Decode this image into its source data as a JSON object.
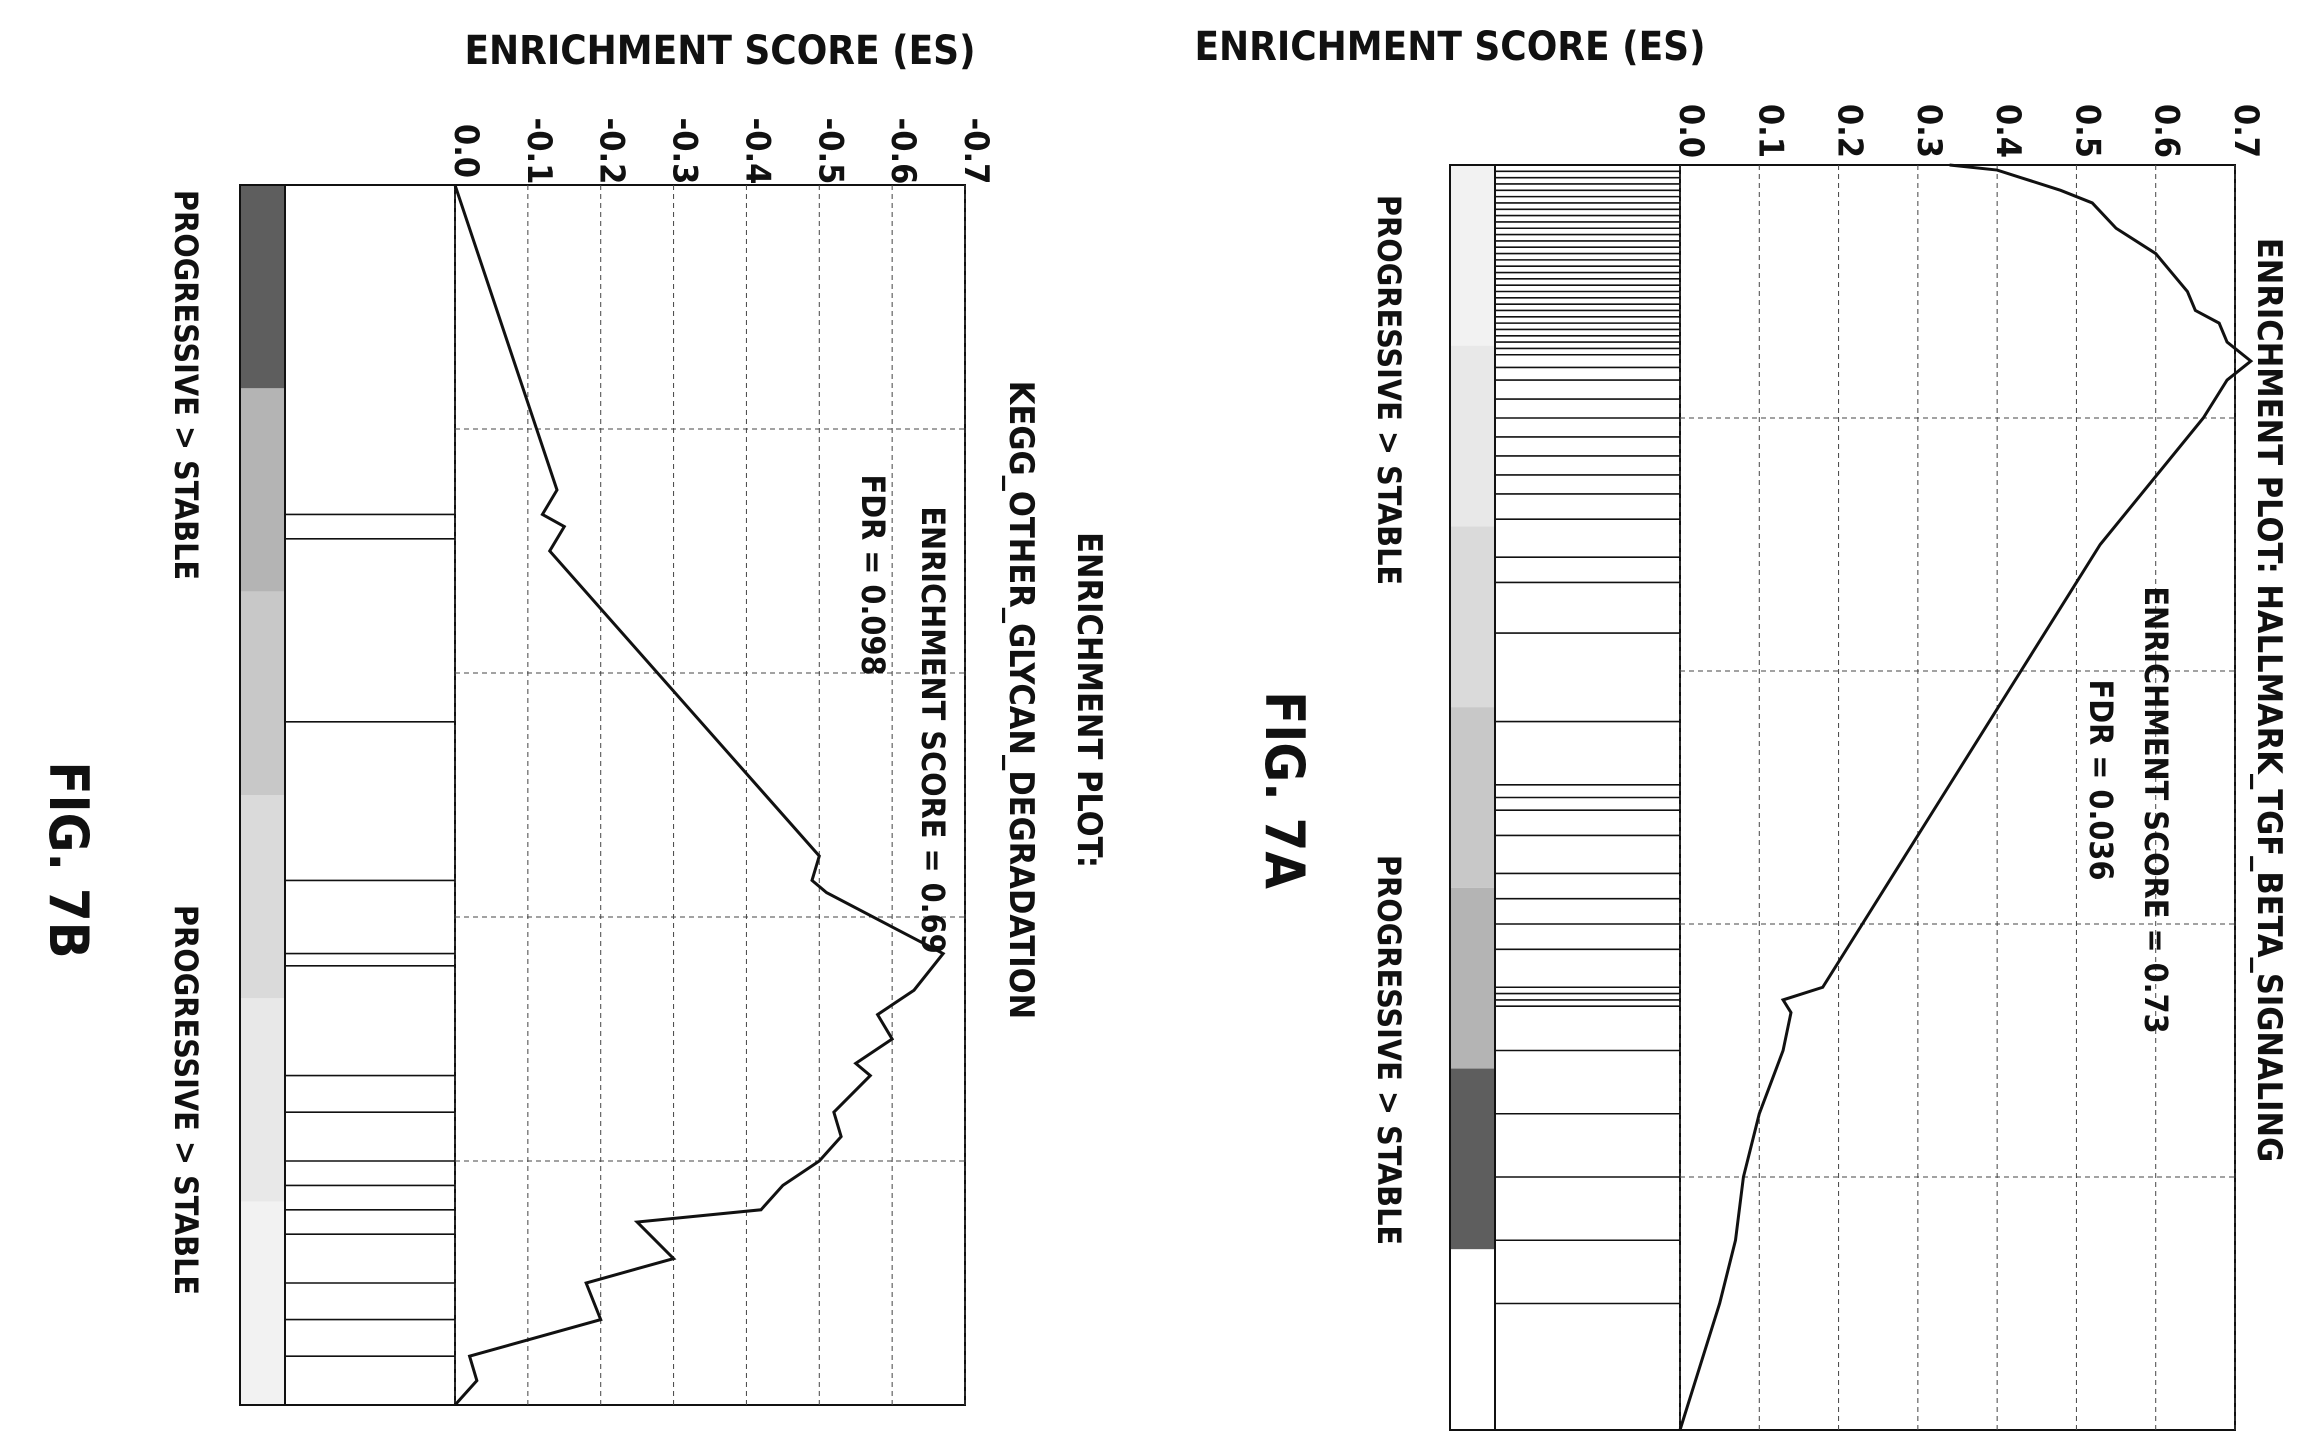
{
  "chart_data": [
    {
      "id": "fig7a",
      "type": "line",
      "figure_label": "FIG. 7A",
      "title": "ENRICHMENT PLOT: HALLMARK_TGF_BETA_SIGNALING",
      "annotations": [
        "ENRICHMENT SCORE = 0.73",
        "FDR = 0.036"
      ],
      "ylabel": "ENRICHMENT SCORE (ES)",
      "ylim": [
        0,
        0.7
      ],
      "yticks": [
        "0.0",
        "0.1",
        "0.2",
        "0.3",
        "0.4",
        "0.5",
        "0.6",
        "0.7"
      ],
      "ytick_values": [
        0,
        0.1,
        0.2,
        0.3,
        0.4,
        0.5,
        0.6,
        0.7
      ],
      "xlim": [
        0,
        1
      ],
      "x_axis_start_label": "PROGRESSIVE > STABLE",
      "x_axis_end_label": "PROGRESSIVE > STABLE",
      "grid": true,
      "series": [
        {
          "x": [
            0,
            0.004,
            0.01,
            0.02,
            0.03,
            0.05,
            0.07,
            0.085,
            0.1,
            0.115,
            0.125,
            0.14,
            0.155,
            0.17,
            0.2,
            0.3,
            0.4,
            0.5,
            0.6,
            0.65,
            0.66,
            0.67,
            0.7,
            0.75,
            0.8,
            0.85,
            0.9,
            0.94,
            0.98,
            1.0
          ],
          "y": [
            0.34,
            0.4,
            0.43,
            0.48,
            0.52,
            0.55,
            0.6,
            0.62,
            0.64,
            0.65,
            0.68,
            0.69,
            0.72,
            0.69,
            0.66,
            0.53,
            0.43,
            0.33,
            0.23,
            0.18,
            0.13,
            0.14,
            0.13,
            0.1,
            0.08,
            0.07,
            0.05,
            0.03,
            0.01,
            0.0
          ]
        }
      ],
      "hits": [
        0.0,
        0.005,
        0.01,
        0.015,
        0.02,
        0.025,
        0.03,
        0.035,
        0.04,
        0.045,
        0.05,
        0.055,
        0.06,
        0.065,
        0.07,
        0.075,
        0.08,
        0.085,
        0.09,
        0.095,
        0.1,
        0.105,
        0.11,
        0.115,
        0.12,
        0.125,
        0.13,
        0.135,
        0.14,
        0.145,
        0.15,
        0.16,
        0.17,
        0.185,
        0.2,
        0.215,
        0.23,
        0.245,
        0.26,
        0.28,
        0.31,
        0.33,
        0.37,
        0.44,
        0.49,
        0.5,
        0.51,
        0.53,
        0.56,
        0.58,
        0.6,
        0.62,
        0.65,
        0.655,
        0.66,
        0.665,
        0.7,
        0.75,
        0.8,
        0.85,
        0.9
      ],
      "ranking_bar_colors": [
        "#f2f2f2",
        "#e8e8e8",
        "#dadada",
        "#c8c8c8",
        "#b4b4b4",
        "#5e5e5e",
        "#ffffff"
      ]
    },
    {
      "id": "fig7b",
      "type": "line",
      "figure_label": "FIG. 7B",
      "title": [
        "ENRICHMENT PLOT:",
        "KEGG_OTHER_GLYCAN_DEGRADATION"
      ],
      "annotations": [
        "ENRICHMENT SCORE = 0.69",
        "FDR = 0.098"
      ],
      "ylabel": "ENRICHMENT SCORE (ES)",
      "ylim": [
        -0.7,
        0
      ],
      "yticks": [
        "0.0",
        "-0.1",
        "-0.2",
        "-0.3",
        "-0.4",
        "-0.5",
        "-0.6",
        "-0.7"
      ],
      "ytick_values": [
        0,
        -0.1,
        -0.2,
        -0.3,
        -0.4,
        -0.5,
        -0.6,
        -0.7
      ],
      "xlim": [
        0,
        1
      ],
      "x_axis_start_label": "PROGRESSIVE > STABLE",
      "x_axis_end_label": "PROGRESSIVE > STABLE",
      "grid": true,
      "series": [
        {
          "x": [
            0,
            0.25,
            0.27,
            0.28,
            0.3,
            0.55,
            0.57,
            0.58,
            0.63,
            0.66,
            0.68,
            0.7,
            0.72,
            0.73,
            0.76,
            0.78,
            0.8,
            0.82,
            0.84,
            0.85,
            0.88,
            0.9,
            0.93,
            0.96,
            0.98,
            1.0
          ],
          "y": [
            0,
            -0.14,
            -0.12,
            -0.15,
            -0.13,
            -0.5,
            -0.49,
            -0.51,
            -0.67,
            -0.63,
            -0.58,
            -0.6,
            -0.55,
            -0.57,
            -0.52,
            -0.53,
            -0.5,
            -0.45,
            -0.42,
            -0.25,
            -0.3,
            -0.18,
            -0.2,
            -0.02,
            -0.03,
            0
          ]
        }
      ],
      "hits": [
        0.27,
        0.29,
        0.44,
        0.57,
        0.63,
        0.64,
        0.73,
        0.76,
        0.8,
        0.82,
        0.84,
        0.86,
        0.9,
        0.93,
        0.96
      ],
      "ranking_bar_colors": [
        "#5e5e5e",
        "#b4b4b4",
        "#c8c8c8",
        "#dadada",
        "#e8e8e8",
        "#f2f2f2"
      ]
    }
  ]
}
